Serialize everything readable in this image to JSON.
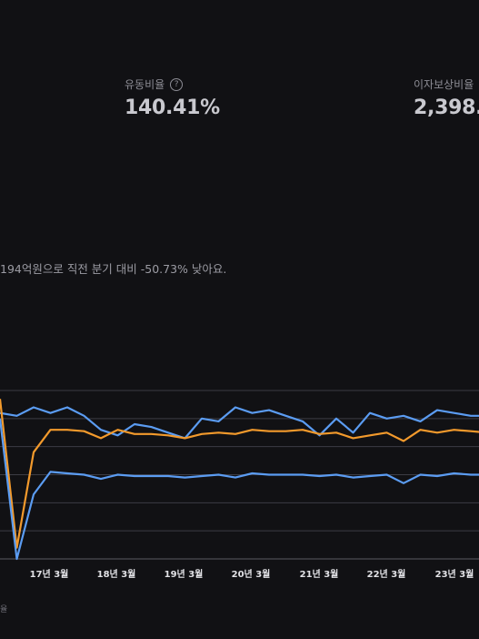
{
  "metrics": [
    {
      "label": "유동비율",
      "value": "140.41%"
    },
    {
      "label": "이자보상비율",
      "value": "2,398."
    }
  ],
  "summary_text": "194억원으로 직전 분기 대비 -50.73% 낮아요.",
  "legend_fragment": "율",
  "chart_data": {
    "type": "line",
    "x_tick_labels": [
      "",
      "17년 3월",
      "18년 3월",
      "19년 3월",
      "20년 3월",
      "21년 3월",
      "22년 3월",
      "23년 3월"
    ],
    "grid": true,
    "ylim": [
      0,
      6
    ],
    "series": [
      {
        "color": "#5b9cf2",
        "values": [
          5.2,
          5.1,
          5.4,
          5.2,
          5.4,
          5.1,
          4.6,
          4.4,
          4.8,
          4.7,
          4.5,
          4.3,
          5.0,
          4.9,
          5.4,
          5.2,
          5.3,
          5.1,
          4.9,
          4.4,
          5.0,
          4.5,
          5.2,
          5.0,
          5.1,
          4.9,
          5.3,
          5.2,
          5.1,
          5.1
        ]
      },
      {
        "color": "#f39a2c",
        "values": [
          5.7,
          0.4,
          3.8,
          4.6,
          4.6,
          4.55,
          4.3,
          4.6,
          4.45,
          4.45,
          4.4,
          4.3,
          4.45,
          4.5,
          4.45,
          4.6,
          4.55,
          4.55,
          4.6,
          4.45,
          4.5,
          4.3,
          4.4,
          4.5,
          4.2,
          4.6,
          4.5,
          4.6,
          4.55,
          4.5
        ]
      },
      {
        "color": "#5b9cf2",
        "values": [
          5.0,
          0.0,
          2.3,
          3.1,
          3.05,
          3.0,
          2.85,
          3.0,
          2.95,
          2.95,
          2.95,
          2.9,
          2.95,
          3.0,
          2.9,
          3.05,
          3.0,
          3.0,
          3.0,
          2.95,
          3.0,
          2.9,
          2.95,
          3.0,
          2.7,
          3.0,
          2.95,
          3.05,
          3.0,
          3.0
        ]
      }
    ]
  }
}
